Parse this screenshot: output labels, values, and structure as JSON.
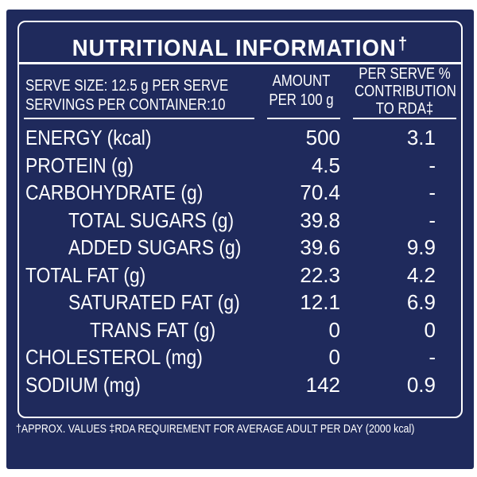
{
  "title": "NUTRITIONAL INFORMATION",
  "title_mark": "†",
  "header": {
    "serve_size": "SERVE SIZE: 12.5 g PER SERVE",
    "servings": "SERVINGS PER CONTAINER:10",
    "amount_line1": "AMOUNT",
    "amount_line2": "PER 100 g",
    "rda_line1": "PER SERVE %",
    "rda_line2": "CONTRIBUTION",
    "rda_line3": "TO RDA‡"
  },
  "rows": [
    {
      "label": "ENERGY (kcal)",
      "amount": "500",
      "rda": "3.1",
      "indent": 0
    },
    {
      "label": "PROTEIN (g)",
      "amount": "4.5",
      "rda": "-",
      "indent": 0
    },
    {
      "label": "CARBOHYDRATE (g)",
      "amount": "70.4",
      "rda": "-",
      "indent": 0
    },
    {
      "label": "TOTAL SUGARS (g)",
      "amount": "39.8",
      "rda": "-",
      "indent": 2
    },
    {
      "label": "ADDED SUGARS (g)",
      "amount": "39.6",
      "rda": "9.9",
      "indent": 2
    },
    {
      "label": "TOTAL FAT (g)",
      "amount": "22.3",
      "rda": "4.2",
      "indent": 0
    },
    {
      "label": "SATURATED FAT (g)",
      "amount": "12.1",
      "rda": "6.9",
      "indent": 2
    },
    {
      "label": "TRANS FAT (g)",
      "amount": "0",
      "rda": "0",
      "indent": 3
    },
    {
      "label": "CHOLESTEROL (mg)",
      "amount": "0",
      "rda": "-",
      "indent": 0
    },
    {
      "label": "SODIUM (mg)",
      "amount": "142",
      "rda": "0.9",
      "indent": 0
    }
  ],
  "footer": "†APPROX. VALUES ‡RDA REQUIREMENT FOR AVERAGE ADULT PER DAY (2000 kcal)",
  "colors": {
    "background": "#1f2a5c",
    "text": "#ffffff"
  }
}
